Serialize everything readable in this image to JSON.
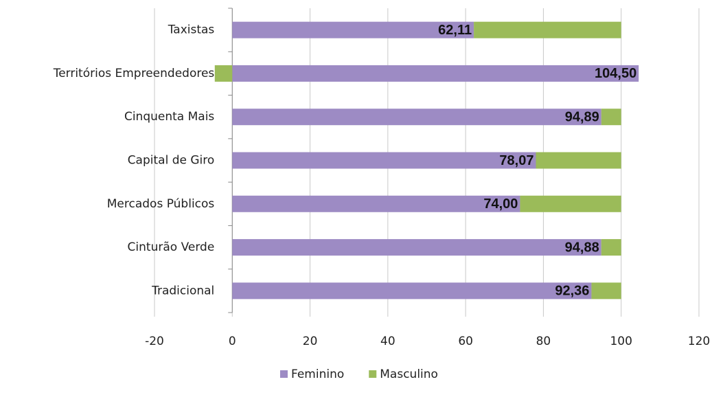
{
  "chart_data": {
    "type": "stacked-bar-horizontal",
    "categories": [
      "Taxistas",
      "Territórios Empreendedores",
      "Cinquenta Mais",
      "Capital de Giro",
      "Mercados Públicos",
      "Cinturão Verde",
      "Tradicional"
    ],
    "series": [
      {
        "name": "Feminino",
        "color": "#9d8bc4",
        "values": [
          62.11,
          104.5,
          94.89,
          78.07,
          74.0,
          94.88,
          92.36
        ],
        "value_labels": [
          "62,11",
          "104,50",
          "94,89",
          "78,07",
          "74,00",
          "94,88",
          "92,36"
        ]
      },
      {
        "name": "Masculino",
        "color": "#9bbb59",
        "values": [
          37.89,
          -4.5,
          5.11,
          21.93,
          26.0,
          5.12,
          7.64
        ]
      }
    ],
    "xlim": [
      -20,
      120
    ],
    "xticks": [
      -20,
      0,
      20,
      40,
      60,
      80,
      100,
      120
    ],
    "grid": true,
    "legend": "bottom"
  }
}
